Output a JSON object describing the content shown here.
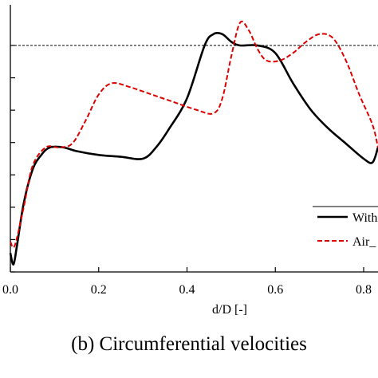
{
  "caption": "(b) Circumferential velocities",
  "chart_data": {
    "type": "line",
    "xlabel": "d/D [-]",
    "ylabel": "",
    "xlim": [
      0.0,
      0.85
    ],
    "x_ticks": [
      0.0,
      0.2,
      0.4,
      0.6,
      0.8
    ],
    "x_tick_labels": [
      "0.0",
      "0.2",
      "0.4",
      "0.6",
      "0.8"
    ],
    "ylim": [
      0.0,
      1.0
    ],
    "y_tick_values": [
      0.0,
      0.1,
      0.2,
      0.3,
      0.4,
      0.5,
      0.6,
      0.7
    ],
    "reference_line_y": 0.6,
    "legend_position": "bottom-right",
    "series": [
      {
        "name": "With",
        "color": "#000000",
        "style": "solid",
        "x": [
          0.0,
          0.007,
          0.015,
          0.03,
          0.05,
          0.07,
          0.09,
          0.12,
          0.15,
          0.2,
          0.25,
          0.3,
          0.33,
          0.36,
          0.4,
          0.44,
          0.46,
          0.48,
          0.5,
          0.52,
          0.56,
          0.6,
          0.64,
          0.68,
          0.72,
          0.76,
          0.8,
          0.82,
          0.85
        ],
        "y": [
          0.05,
          0.02,
          0.07,
          0.18,
          0.27,
          0.31,
          0.33,
          0.33,
          0.32,
          0.31,
          0.305,
          0.3,
          0.33,
          0.38,
          0.46,
          0.6,
          0.63,
          0.63,
          0.61,
          0.6,
          0.6,
          0.58,
          0.5,
          0.43,
          0.38,
          0.34,
          0.3,
          0.29,
          0.33
        ]
      },
      {
        "name": "Air_",
        "color": "#dd0000",
        "style": "dashed",
        "x": [
          0.0,
          0.01,
          0.03,
          0.05,
          0.08,
          0.11,
          0.14,
          0.17,
          0.2,
          0.23,
          0.27,
          0.32,
          0.37,
          0.42,
          0.46,
          0.48,
          0.5,
          0.52,
          0.54,
          0.56,
          0.58,
          0.61,
          0.64,
          0.67,
          0.7,
          0.73,
          0.76,
          0.79,
          0.82,
          0.85
        ],
        "y": [
          0.08,
          0.07,
          0.17,
          0.28,
          0.33,
          0.33,
          0.34,
          0.4,
          0.47,
          0.5,
          0.49,
          0.47,
          0.45,
          0.43,
          0.42,
          0.46,
          0.57,
          0.66,
          0.64,
          0.59,
          0.56,
          0.56,
          0.58,
          0.61,
          0.63,
          0.62,
          0.56,
          0.47,
          0.39,
          0.33
        ]
      }
    ]
  }
}
